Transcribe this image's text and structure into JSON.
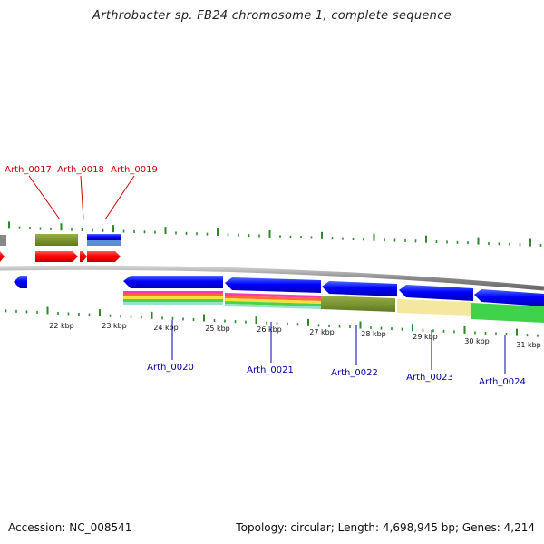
{
  "title": "Arthrobacter sp. FB24 chromosome 1, complete sequence",
  "footer": {
    "accession": "Accession: NC_008541",
    "summary": "Topology: circular; Length: 4,698,945 bp; Genes: 4,214"
  },
  "colors": {
    "forward_gene": "#ff0000",
    "reverse_gene": "#0000ff",
    "label_forward": "#cc0000",
    "label_reverse": "#0000aa",
    "ticks": "#2a8a2a",
    "backbone": "#888888"
  },
  "kbp_labels": [
    "22 kbp",
    "23 kbp",
    "24 kbp",
    "25 kbp",
    "26 kbp",
    "27 kbp",
    "28 kbp",
    "29 kbp",
    "30 kbp",
    "31 kbp"
  ],
  "genes_top": [
    {
      "name": "Arth_0017"
    },
    {
      "name": "Arth_0018"
    },
    {
      "name": "Arth_0019"
    }
  ],
  "genes_bottom": [
    {
      "name": "Arth_0020"
    },
    {
      "name": "Arth_0021"
    },
    {
      "name": "Arth_0022"
    },
    {
      "name": "Arth_0023"
    },
    {
      "name": "Arth_0024"
    }
  ]
}
